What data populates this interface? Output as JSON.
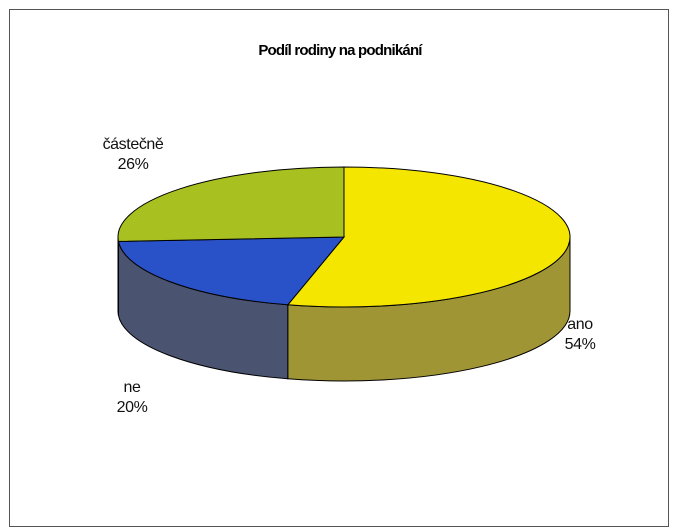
{
  "chart_data": {
    "type": "pie",
    "title": "Podíl rodiny na podnikání",
    "legend": "none",
    "slices": [
      {
        "name": "ano",
        "value": 54,
        "value_label": "54%",
        "color": "#f5e600",
        "side_color": "#a09535"
      },
      {
        "name": "ne",
        "value": 20,
        "value_label": "20%",
        "color": "#2a52c8",
        "side_color": "#4a5470"
      },
      {
        "name": "částečně",
        "value": 26,
        "value_label": "26%",
        "color": "#a8c020",
        "side_color": "#6f7e2a"
      }
    ]
  }
}
